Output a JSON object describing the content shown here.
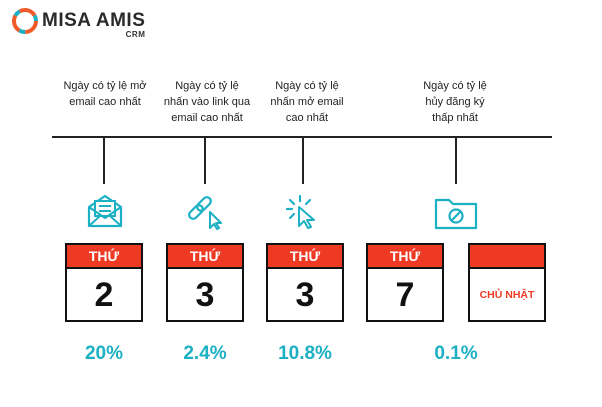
{
  "brand": {
    "name": "MISA AMIS",
    "sub": "CRM"
  },
  "captions": [
    "Ngày có tỷ lệ mở\nemail cao nhất",
    "Ngày có tỷ lệ\nnhấn vào link qua\nemail cao nhất",
    "Ngày có tỷ lệ\nnhấn mở email\ncao nhất",
    "Ngày có tỷ lệ\nhủy đăng ký\nthấp nhất"
  ],
  "icons": [
    "envelope-open-icon",
    "link-cursor-icon",
    "click-cursor-icon",
    "folder-block-icon"
  ],
  "calendars": [
    {
      "header": "THỨ",
      "number": "2"
    },
    {
      "header": "THỨ",
      "number": "3"
    },
    {
      "header": "THỨ",
      "number": "3"
    },
    {
      "header": "THỨ",
      "number": "7"
    },
    {
      "header": "",
      "label": "CHỦ NHẬT"
    }
  ],
  "percentages": [
    "20%",
    "2.4%",
    "10.8%",
    "0.1%"
  ],
  "colors": {
    "accent_red": "#ee3a23",
    "accent_teal": "#1bb0c4",
    "brand_orange": "#f15a29"
  }
}
